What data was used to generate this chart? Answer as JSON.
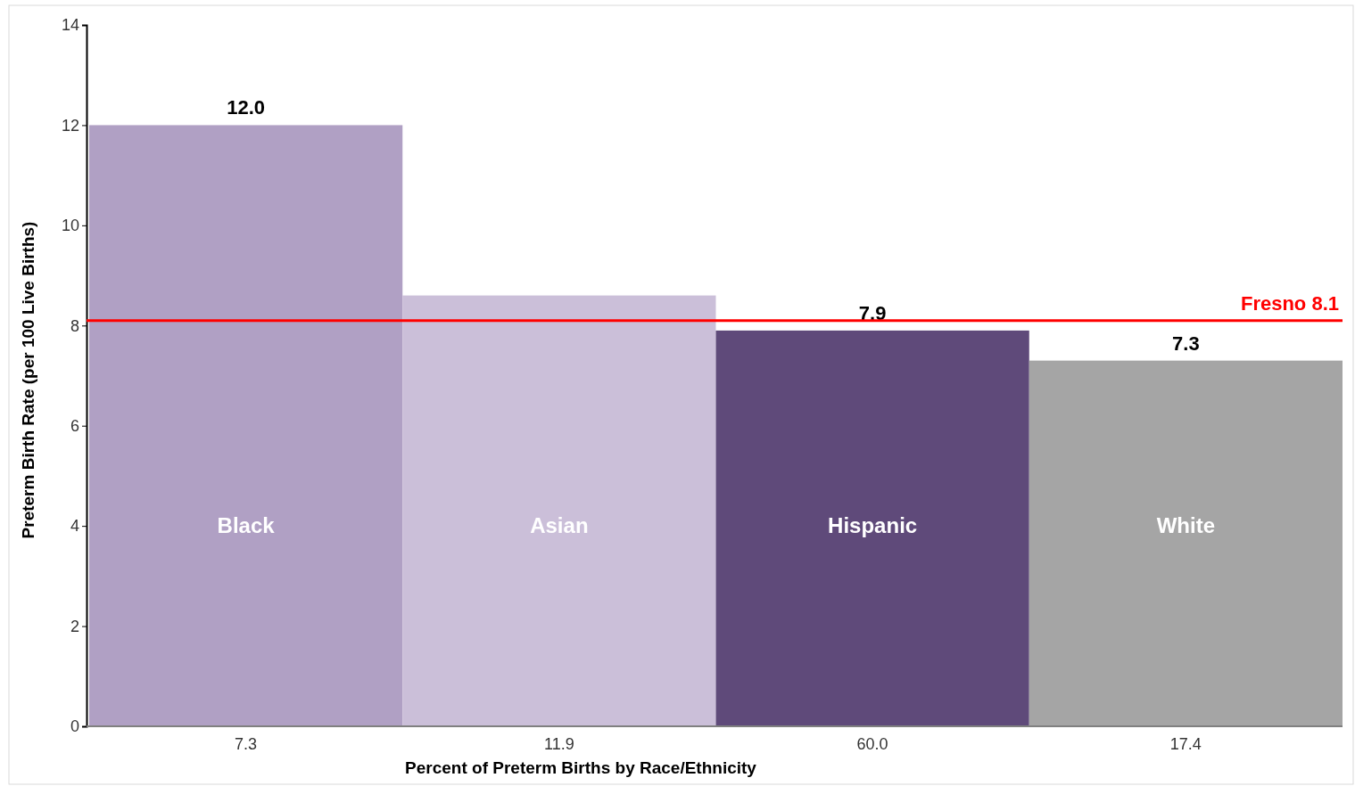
{
  "chart_data": {
    "type": "bar",
    "xlabel": "Percent of Preterm Births by Race/Ethnicity",
    "ylabel": "Preterm Birth Rate (per 100 Live Births)",
    "values": [
      12.0,
      8.6,
      7.9,
      7.3
    ],
    "categories": [
      "7.3",
      "11.9",
      "60.0",
      "17.4"
    ],
    "colors": [
      "#b0a0c4",
      "#cbbfd9",
      "#5f4a7a",
      "#a5a5a5"
    ],
    "value_labels": [
      "12.0",
      null,
      "7.9",
      "7.3"
    ],
    "ylim": [
      0,
      14
    ],
    "yticks": [
      0,
      2,
      4,
      6,
      8,
      10,
      12,
      14
    ],
    "ref_lines": [
      {
        "axis": "y",
        "value": 8.1,
        "label": "Fresno 8.1",
        "color": "#ff0000"
      }
    ],
    "annotations": [
      "Black",
      "Asian",
      "Hispanic",
      "White"
    ]
  }
}
